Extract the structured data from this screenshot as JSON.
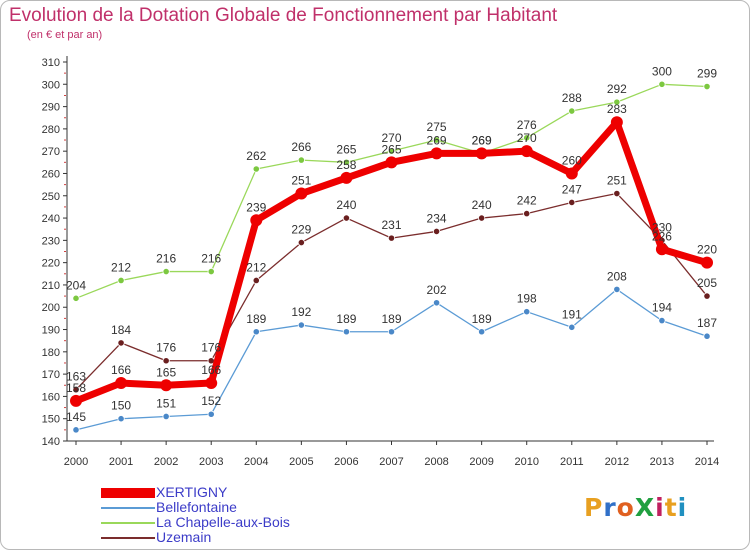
{
  "title": "Evolution de la Dotation Globale de Fonctionnement par Habitant",
  "subtitle": "(en € et par an)",
  "logo": {
    "text": "ProXiti",
    "colors": [
      "#e8a020",
      "#3070c8",
      "#e06020",
      "#20a040",
      "#c02060",
      "#e8a020",
      "#2090c0"
    ]
  },
  "chart_data": {
    "type": "line",
    "title": "Evolution de la Dotation Globale de Fonctionnement par Habitant",
    "subtitle": "(en € et par an)",
    "x": [
      "2000",
      "2001",
      "2002",
      "2003",
      "2004",
      "2005",
      "2006",
      "2007",
      "2008",
      "2009",
      "2010",
      "2011",
      "2012",
      "2013",
      "2014"
    ],
    "ylim": [
      140,
      310
    ],
    "yticks": [
      140,
      150,
      160,
      170,
      180,
      190,
      200,
      210,
      220,
      230,
      240,
      250,
      260,
      270,
      280,
      290,
      300,
      310
    ],
    "grid": false,
    "legend_position": "bottom-left",
    "series": [
      {
        "name": "Bellefontaine",
        "color": "#5b9bd5",
        "marker": "#4a88c8",
        "values": [
          145,
          150,
          151,
          152,
          189,
          192,
          189,
          189,
          202,
          189,
          198,
          191,
          208,
          194,
          187
        ]
      },
      {
        "name": "La Chapelle-aux-Bois",
        "color": "#9ad85a",
        "marker": "#7cc840",
        "values": [
          204,
          212,
          216,
          216,
          262,
          266,
          265,
          270,
          275,
          269,
          276,
          288,
          292,
          300,
          299
        ]
      },
      {
        "name": "Uzemain",
        "color": "#7b2d2d",
        "marker": "#6a1f1f",
        "values": [
          163,
          184,
          176,
          176,
          212,
          229,
          240,
          231,
          234,
          240,
          242,
          247,
          251,
          230,
          205
        ]
      },
      {
        "name": "XERTIGNY",
        "color": "#ee0000",
        "marker": "#ee0000",
        "values": [
          158,
          166,
          165,
          166,
          239,
          251,
          258,
          265,
          269,
          269,
          270,
          260,
          283,
          226,
          220
        ]
      }
    ],
    "legend_order": [
      "XERTIGNY",
      "Bellefontaine",
      "La Chapelle-aux-Bois",
      "Uzemain"
    ]
  }
}
